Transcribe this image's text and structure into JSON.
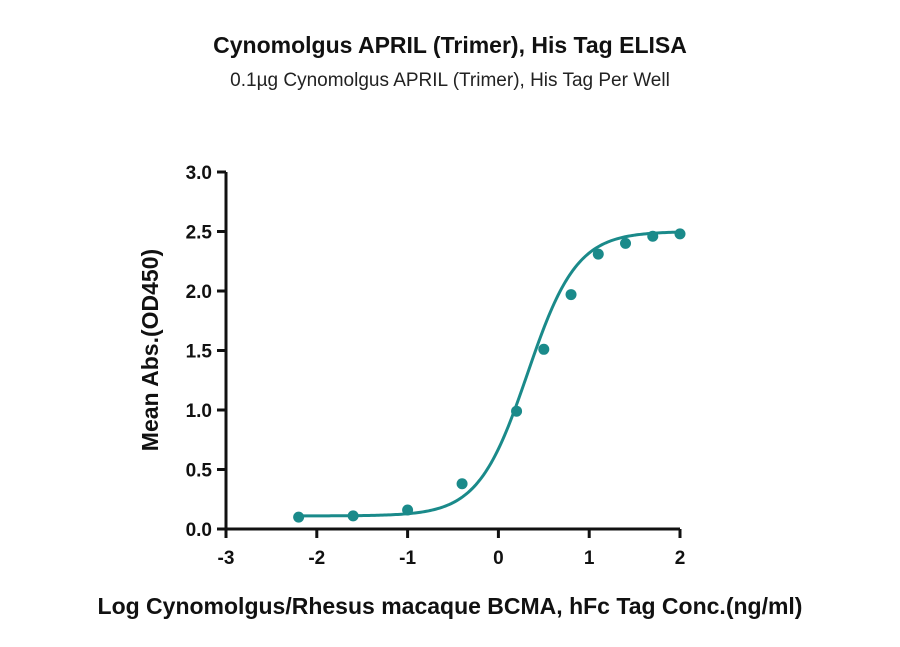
{
  "chart_data": {
    "type": "scatter",
    "title": "Cynomolgus APRIL (Trimer), His Tag ELISA",
    "subtitle": "0.1µg Cynomolgus APRIL (Trimer), His Tag Per Well",
    "xlabel": "Log Cynomolgus/Rhesus macaque BCMA, hFc Tag Conc.(ng/ml)",
    "ylabel": "Mean Abs.(OD450)",
    "xlim": [
      -3,
      2
    ],
    "ylim": [
      0,
      3.0
    ],
    "xticks": [
      "-3",
      "-2",
      "-1",
      "0",
      "1",
      "2"
    ],
    "yticks": [
      "0.0",
      "0.5",
      "1.0",
      "1.5",
      "2.0",
      "2.5",
      "3.0"
    ],
    "grid": false,
    "color": "#1a8a8a",
    "points": {
      "x": [
        -2.2,
        -1.6,
        -1.0,
        -0.4,
        0.2,
        0.5,
        0.8,
        1.1,
        1.4,
        1.7,
        2.0
      ],
      "y": [
        0.1,
        0.11,
        0.16,
        0.38,
        0.99,
        1.51,
        1.97,
        2.31,
        2.4,
        2.46,
        2.48
      ]
    },
    "fit_curve": {
      "bottom": 0.11,
      "top": 2.5,
      "logEC50": 0.32,
      "hillslope": 1.6,
      "x_range": [
        -2.2,
        2.0
      ]
    }
  }
}
